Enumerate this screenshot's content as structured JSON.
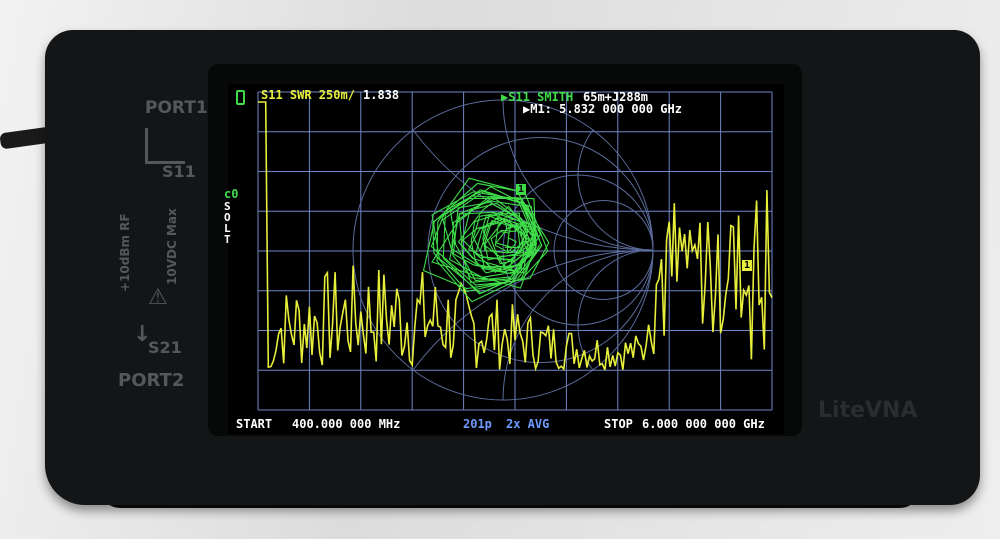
{
  "device": {
    "port1_label": "PORT1",
    "s11_label": "S11",
    "s21_label": "S21",
    "port2_label": "PORT2",
    "rating_line1": "+10dBm RF",
    "rating_line2": "10VDC Max",
    "brand": "LiteVNA"
  },
  "screen": {
    "trace1_label": "S11 SWR 250m/",
    "trace1_value": "1.838",
    "trace2_label": "▶S11 SMITH",
    "trace2_value": "65m+J288m",
    "marker_readout": "▶M1: 5.832 000 000 GHz",
    "cal_status": "c0",
    "cal_method": [
      "S",
      "O",
      "L",
      "T"
    ],
    "start_label": "START",
    "start_value": "400.000 000 MHz",
    "points": "201p",
    "avg": "2x AVG",
    "stop_label": "STOP",
    "stop_value": "6.000 000 000 GHz",
    "marker_smith": "1",
    "marker_swr": "1",
    "colors": {
      "swr_trace": "#e8ef3a",
      "smith_trace": "#3fdc4a",
      "grid": "#6f86c8",
      "text": "#ffffff",
      "info": "#6f9bff",
      "battery": "#3fdc4a"
    }
  }
}
